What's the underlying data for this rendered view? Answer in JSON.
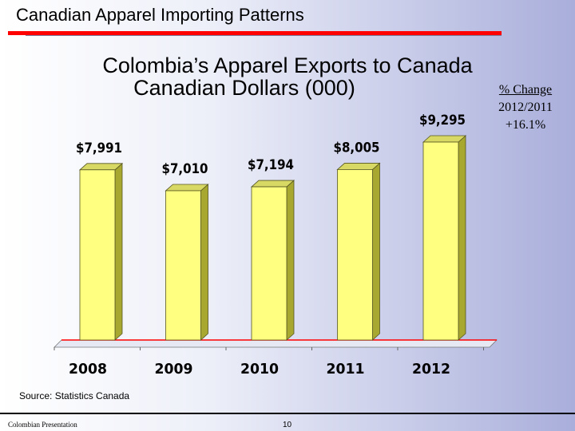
{
  "header": {
    "title": "Canadian Apparel Importing Patterns"
  },
  "chart_data": {
    "type": "bar",
    "title": "Colombia’s Apparel Exports to Canada",
    "subtitle": "Canadian Dollars (000)",
    "categories": [
      "2008",
      "2009",
      "2010",
      "2011",
      "2012"
    ],
    "values": [
      7991,
      7010,
      7194,
      8005,
      9295
    ],
    "value_labels": [
      "$7,991",
      "$7,010",
      "$7,194",
      "$8,005",
      "$9,295"
    ],
    "style": "3d",
    "bar_color": "#ffff80",
    "grid": false,
    "legend": "none"
  },
  "annotation": {
    "heading": "% Change",
    "period": "2012/2011",
    "value": "+16.1%"
  },
  "source": "Source: Statistics Canada",
  "footer": {
    "left": "Colombian Presentation",
    "page": "10"
  },
  "colors": {
    "accent_rule": "#ff0000",
    "bar": "#ffff80"
  }
}
